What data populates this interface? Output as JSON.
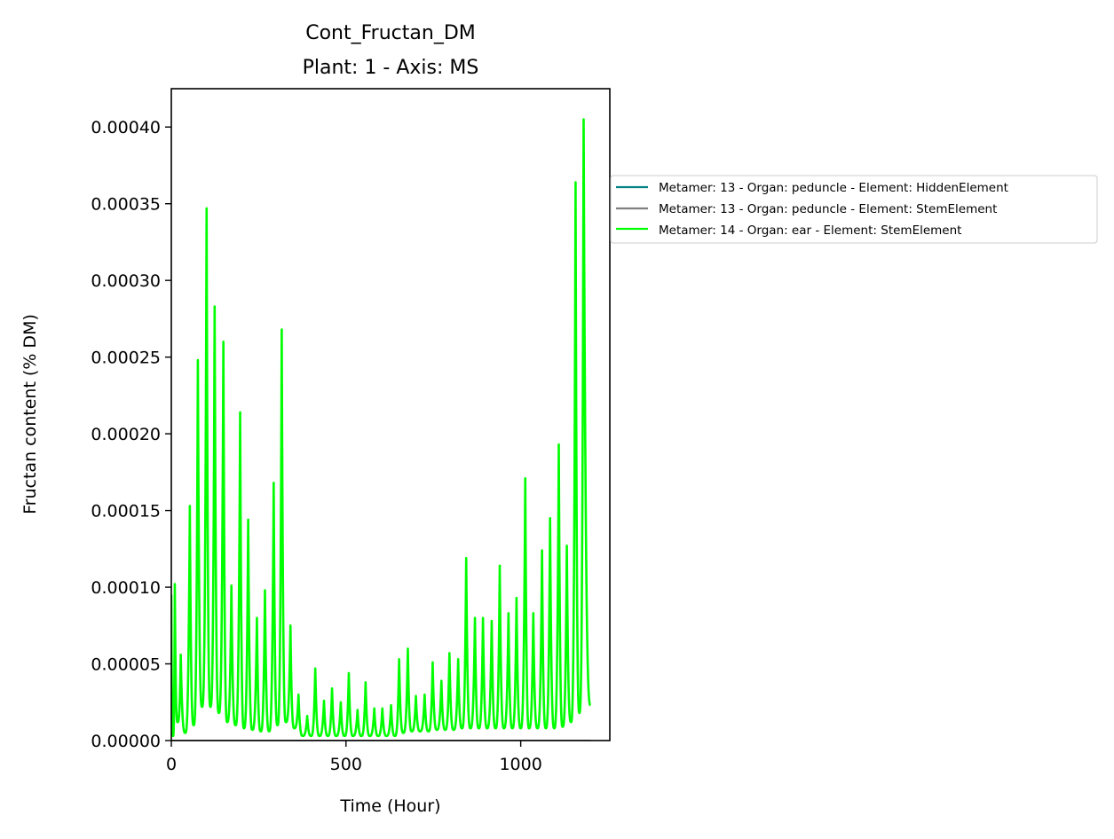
{
  "chart_data": {
    "type": "line",
    "title": "Cont_Fructan_DM",
    "subtitle": "Plant: 1 - Axis: MS",
    "xlabel": "Time (Hour)",
    "ylabel": "Fructan content (% DM)",
    "xlim": [
      0,
      1255
    ],
    "ylim": [
      0,
      0.000425
    ],
    "x_ticks": [
      0,
      500,
      1000
    ],
    "x_tick_labels": [
      "0",
      "500",
      "1000"
    ],
    "y_ticks": [
      0,
      5e-05,
      0.0001,
      0.00015,
      0.0002,
      0.00025,
      0.0003,
      0.00035,
      0.0004
    ],
    "y_tick_labels": [
      "0.00000",
      "0.00005",
      "0.00010",
      "0.00015",
      "0.00020",
      "0.00025",
      "0.00030",
      "0.00035",
      "0.00040"
    ],
    "grid": false,
    "legend_position": "outside right",
    "series": [
      {
        "name": "Metamer: 13 - Organ: peduncle - Element: HiddenElement",
        "color": "#008080",
        "x": [
          0,
          1200
        ],
        "y": [
          0,
          0
        ]
      },
      {
        "name": "Metamer: 13 - Organ: peduncle - Element: StemElement",
        "color": "#808080",
        "x": [
          0,
          1200
        ],
        "y": [
          0,
          0
        ]
      },
      {
        "name": "Metamer: 14 - Organ: ear - Element: StemElement",
        "color": "#00ff00",
        "peak_times": [
          0,
          10,
          27,
          53,
          76,
          101,
          124,
          149,
          172,
          197,
          220,
          245,
          268,
          293,
          316,
          341,
          364,
          389,
          412,
          437,
          460,
          485,
          508,
          533,
          556,
          581,
          604,
          629,
          652,
          677,
          700,
          725,
          748,
          773,
          796,
          821,
          844,
          869,
          892,
          917,
          940,
          965,
          988,
          1013,
          1036,
          1061,
          1084,
          1109,
          1132,
          1157,
          1180
        ],
        "peaks": [
          9.5e-05,
          0.000102,
          5.6e-05,
          0.000153,
          0.000248,
          0.000347,
          0.000283,
          0.00026,
          0.000101,
          0.000214,
          0.000144,
          8e-05,
          9.8e-05,
          0.000168,
          0.000268,
          7.5e-05,
          3e-05,
          1.6e-05,
          4.7e-05,
          2.6e-05,
          3.4e-05,
          2.5e-05,
          4.4e-05,
          2e-05,
          3.8e-05,
          2.1e-05,
          2.1e-05,
          2.3e-05,
          5.3e-05,
          6e-05,
          2.9e-05,
          3e-05,
          5.1e-05,
          3.9e-05,
          5.7e-05,
          5.3e-05,
          0.000119,
          8e-05,
          8e-05,
          7.8e-05,
          0.000114,
          8.3e-05,
          9.3e-05,
          0.000171,
          8.3e-05,
          0.000124,
          0.000145,
          0.000193,
          0.000127,
          0.000364,
          0.000405
        ],
        "trough_times": [
          5,
          18,
          40,
          64,
          88,
          112,
          136,
          160,
          184,
          208,
          232,
          256,
          280,
          304,
          328,
          352,
          376,
          400,
          424,
          448,
          472,
          496,
          520,
          544,
          568,
          592,
          616,
          640,
          664,
          688,
          712,
          736,
          760,
          784,
          808,
          832,
          856,
          880,
          904,
          928,
          952,
          976,
          1000,
          1024,
          1048,
          1072,
          1096,
          1120,
          1144,
          1168
        ],
        "troughs": [
          3e-06,
          1.2e-05,
          5e-06,
          1e-05,
          2.2e-05,
          2.2e-05,
          1.8e-05,
          1.2e-05,
          1e-05,
          8e-06,
          7e-06,
          6e-06,
          6e-06,
          1e-05,
          1.2e-05,
          8e-06,
          3e-06,
          3e-06,
          3e-06,
          3e-06,
          3e-06,
          3e-06,
          3e-06,
          3e-06,
          3e-06,
          3e-06,
          3e-06,
          3e-06,
          5e-06,
          6e-06,
          6e-06,
          6e-06,
          7e-06,
          7e-06,
          7e-06,
          8e-06,
          8e-06,
          8e-06,
          8e-06,
          8e-06,
          8e-06,
          8e-06,
          8e-06,
          8e-06,
          8e-06,
          8e-06,
          8e-06,
          9e-06,
          1.2e-05,
          1.8e-05
        ],
        "end_point": [
          1200,
          2.3e-05
        ]
      }
    ]
  }
}
